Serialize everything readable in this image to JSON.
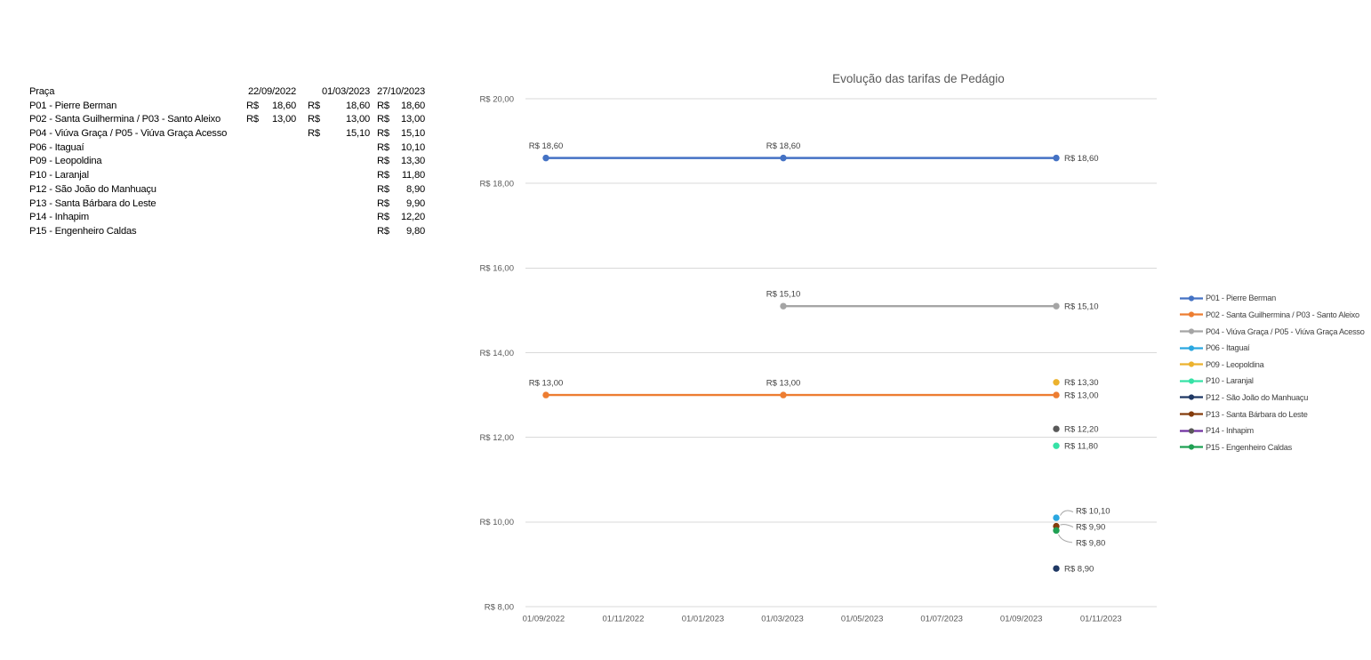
{
  "table": {
    "header": {
      "name_label": "Praça",
      "columns": [
        "22/09/2022",
        "01/03/2023",
        "27/10/2023"
      ]
    },
    "currency_symbol": "R$",
    "rows": [
      {
        "name": "P01 - Pierre Berman",
        "values": [
          "18,60",
          "18,60",
          "18,60"
        ]
      },
      {
        "name": "P02 - Santa Guilhermina / P03 - Santo Aleixo",
        "values": [
          "13,00",
          "13,00",
          "13,00"
        ]
      },
      {
        "name": "P04 - Viúva Graça / P05 - Viúva Graça Acesso",
        "values": [
          "",
          "15,10",
          "15,10"
        ]
      },
      {
        "name": "P06 - Itaguaí",
        "values": [
          "",
          "",
          "10,10"
        ]
      },
      {
        "name": "P09 - Leopoldina",
        "values": [
          "",
          "",
          "13,30"
        ]
      },
      {
        "name": "P10 - Laranjal",
        "values": [
          "",
          "",
          "11,80"
        ]
      },
      {
        "name": "P12 - São João do Manhuaçu",
        "values": [
          "",
          "",
          "8,90"
        ]
      },
      {
        "name": "P13 - Santa Bárbara do Leste",
        "values": [
          "",
          "",
          "9,90"
        ]
      },
      {
        "name": "P14 - Inhapim",
        "values": [
          "",
          "",
          "12,20"
        ]
      },
      {
        "name": "P15 - Engenheiro Caldas",
        "values": [
          "",
          "",
          "9,80"
        ]
      }
    ]
  },
  "chart_data": {
    "type": "line",
    "title": "Evolução das tarifas de Pedágio",
    "grid": true,
    "legend_position": "right",
    "x_axis": {
      "type": "date",
      "ticks": [
        "01/09/2022",
        "01/11/2022",
        "01/01/2023",
        "01/03/2023",
        "01/05/2023",
        "01/07/2023",
        "01/09/2023",
        "01/11/2023"
      ]
    },
    "y_axis": {
      "min": 8,
      "max": 20,
      "step": 2,
      "ticks": [
        "R$ 20,00",
        "R$ 18,00",
        "R$ 16,00",
        "R$ 14,00",
        "R$ 12,00",
        "R$ 10,00",
        "R$ 8,00"
      ]
    },
    "colors": {
      "grid": "#d9d9d9",
      "tick_text": "#595959",
      "data_label": "#3f3f3f",
      "leader": "#a6a6a6"
    },
    "series": [
      {
        "name": "P01 - Pierre Berman",
        "color": "#4472C4",
        "points": [
          {
            "date": "22/09/2022",
            "value": 18.6,
            "label": "R$ 18,60",
            "label_pos": "above"
          },
          {
            "date": "01/03/2023",
            "value": 18.6,
            "label": "R$ 18,60",
            "label_pos": "above"
          },
          {
            "date": "27/10/2023",
            "value": 18.6,
            "label": "R$ 18,60",
            "label_pos": "right"
          }
        ]
      },
      {
        "name": "P02 - Santa Guilhermina / P03 - Santo Aleixo",
        "color": "#ED7D31",
        "points": [
          {
            "date": "22/09/2022",
            "value": 13.0,
            "label": "R$ 13,00",
            "label_pos": "above"
          },
          {
            "date": "01/03/2023",
            "value": 13.0,
            "label": "R$ 13,00",
            "label_pos": "above"
          },
          {
            "date": "27/10/2023",
            "value": 13.0,
            "label": "R$ 13,00",
            "label_pos": "right"
          }
        ]
      },
      {
        "name": "P04 - Viúva Graça / P05 - Viúva Graça Acesso",
        "color": "#A5A5A5",
        "points": [
          {
            "date": "01/03/2023",
            "value": 15.1,
            "label": "R$ 15,10",
            "label_pos": "above"
          },
          {
            "date": "27/10/2023",
            "value": 15.1,
            "label": "R$ 15,10",
            "label_pos": "right"
          }
        ]
      },
      {
        "name": "P06 - Itaguaí",
        "color": "#2BA7E0",
        "points": [
          {
            "date": "27/10/2023",
            "value": 10.1,
            "label": "R$ 10,10",
            "label_pos": "callout-up"
          }
        ]
      },
      {
        "name": "P09 - Leopoldina",
        "color": "#ECB22D",
        "points": [
          {
            "date": "27/10/2023",
            "value": 13.3,
            "label": "R$ 13,30",
            "label_pos": "right"
          }
        ]
      },
      {
        "name": "P10 - Laranjal",
        "color": "#36E2A6",
        "points": [
          {
            "date": "27/10/2023",
            "value": 11.8,
            "label": "R$ 11,80",
            "label_pos": "right"
          }
        ]
      },
      {
        "name": "P12 - São João do Manhuaçu",
        "color": "#1F3864",
        "points": [
          {
            "date": "27/10/2023",
            "value": 8.9,
            "label": "R$ 8,90",
            "label_pos": "right"
          }
        ]
      },
      {
        "name": "P13 - Santa Bárbara do Leste",
        "color": "#843C0C",
        "points": [
          {
            "date": "27/10/2023",
            "value": 9.9,
            "label": "R$ 9,90",
            "label_pos": "callout-right"
          }
        ]
      },
      {
        "name": "P14 - Inhapim",
        "color": "#7030A0",
        "marker_color": "#595959",
        "points": [
          {
            "date": "27/10/2023",
            "value": 12.2,
            "label": "R$ 12,20",
            "label_pos": "right"
          }
        ]
      },
      {
        "name": "P15 - Engenheiro Caldas",
        "color": "#1FA053",
        "points": [
          {
            "date": "27/10/2023",
            "value": 9.8,
            "label": "R$ 9,80",
            "label_pos": "callout-down"
          }
        ]
      }
    ]
  }
}
